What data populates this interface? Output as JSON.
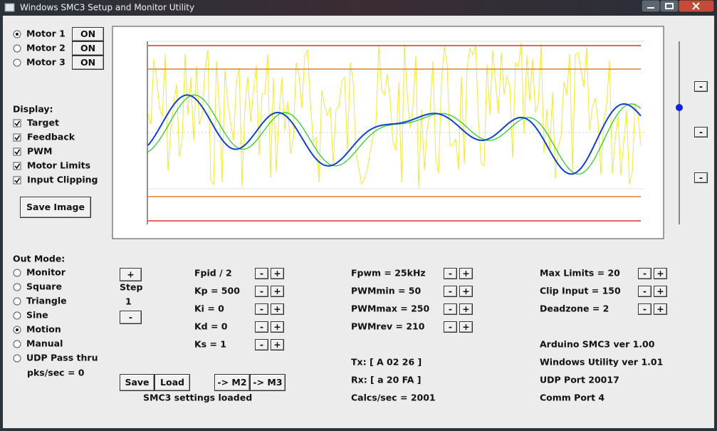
{
  "window": {
    "title": "Windows SMC3 Setup and Monitor Utility"
  },
  "motors": [
    {
      "label": "Motor 1",
      "button": "ON",
      "selected": true
    },
    {
      "label": "Motor 2",
      "button": "ON",
      "selected": false
    },
    {
      "label": "Motor 3",
      "button": "ON",
      "selected": false
    }
  ],
  "display": {
    "label": "Display:",
    "options": [
      "Target",
      "Feedback",
      "PWM",
      "Motor Limits",
      "Input Clipping"
    ],
    "save_button": "Save Image"
  },
  "out_mode": {
    "label": "Out Mode:",
    "options": [
      "Monitor",
      "Square",
      "Triangle",
      "Sine",
      "Motion",
      "Manual",
      "UDP Pass thru"
    ],
    "selected": 4,
    "rate": "pks/sec = 0"
  },
  "step": {
    "plus": "+",
    "label": "Step",
    "value": 1,
    "minus": "-"
  },
  "adjust": {
    "minus": "-",
    "plus": "+"
  },
  "params": [
    [
      "Fpid / 2",
      "Kp = 500",
      "Ki = 0",
      "Kd = 0",
      "Ks = 1"
    ],
    [
      "Fpwm = 25kHz",
      "PWMmin = 50",
      "PWMmax = 250",
      "PWMrev = 210"
    ],
    [
      "Max Limits = 20",
      "Clip Input = 150",
      "Deadzone = 2"
    ]
  ],
  "serial": [
    "Tx: [ A 02 26 ]",
    "Rx: [ a 20 FA ]",
    "Calcs/sec = 2001"
  ],
  "info": [
    "Arduino SMC3 ver 1.00",
    "Windows Utility ver 1.01",
    "UDP Port 20017",
    "Comm Port 4"
  ],
  "buttons": {
    "save": "Save",
    "load": "Load",
    "to_m2": "-> M2",
    "to_m3": "-> M3"
  },
  "status": "SMC3 settings loaded"
}
